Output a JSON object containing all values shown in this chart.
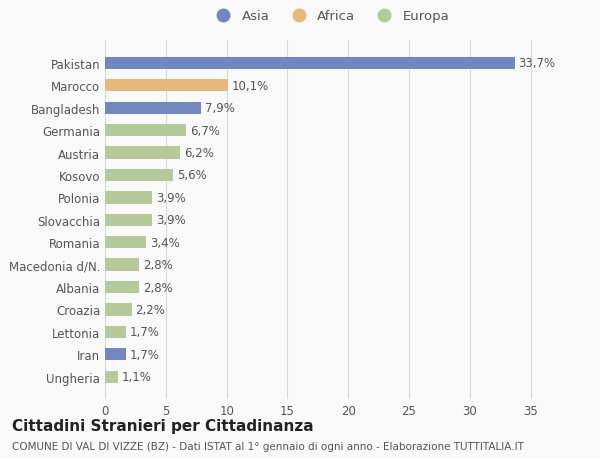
{
  "categories": [
    "Ungheria",
    "Iran",
    "Lettonia",
    "Croazia",
    "Albania",
    "Macedonia d/N.",
    "Romania",
    "Slovacchia",
    "Polonia",
    "Kosovo",
    "Austria",
    "Germania",
    "Bangladesh",
    "Marocco",
    "Pakistan"
  ],
  "values": [
    1.1,
    1.7,
    1.7,
    2.2,
    2.8,
    2.8,
    3.4,
    3.9,
    3.9,
    5.6,
    6.2,
    6.7,
    7.9,
    10.1,
    33.7
  ],
  "labels": [
    "1,1%",
    "1,7%",
    "1,7%",
    "2,2%",
    "2,8%",
    "2,8%",
    "3,4%",
    "3,9%",
    "3,9%",
    "5,6%",
    "6,2%",
    "6,7%",
    "7,9%",
    "10,1%",
    "33,7%"
  ],
  "colors": [
    "#b5c99a",
    "#7087c0",
    "#b5c99a",
    "#b5c99a",
    "#b5c99a",
    "#b5c99a",
    "#b5c99a",
    "#b5c99a",
    "#b5c99a",
    "#b5c99a",
    "#b5c99a",
    "#b5c99a",
    "#7087c0",
    "#e8b87a",
    "#7087c0"
  ],
  "legend_labels": [
    "Asia",
    "Africa",
    "Europa"
  ],
  "legend_colors": [
    "#7087c0",
    "#e8b87a",
    "#b5c99a"
  ],
  "title": "Cittadini Stranieri per Cittadinanza",
  "subtitle": "COMUNE DI VAL DI VIZZE (BZ) - Dati ISTAT al 1° gennaio di ogni anno - Elaborazione TUTTITALIA.IT",
  "xlim": [
    0,
    37
  ],
  "xticks": [
    0,
    5,
    10,
    15,
    20,
    25,
    30,
    35
  ],
  "background_color": "#f9f9f9",
  "grid_color": "#d8d8d8",
  "bar_height": 0.55,
  "label_fontsize": 8.5,
  "tick_fontsize": 8.5,
  "legend_fontsize": 9.5,
  "title_fontsize": 11,
  "subtitle_fontsize": 7.5
}
